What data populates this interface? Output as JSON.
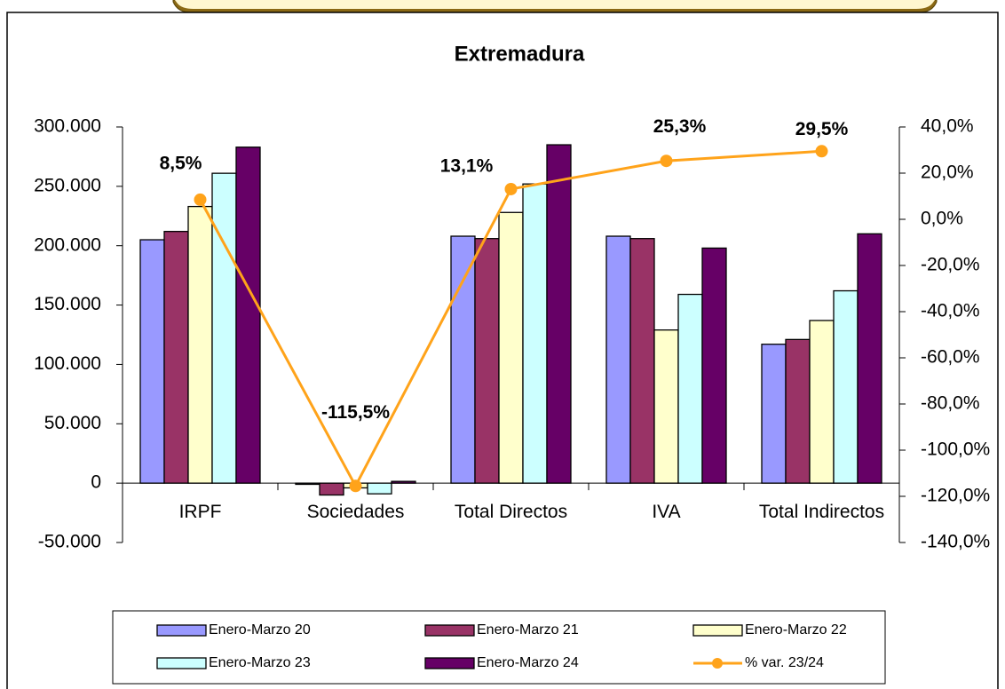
{
  "chart_data": {
    "type": "bar",
    "title": "Extremadura",
    "categories": [
      "IRPF",
      "Sociedades",
      "Total Directos",
      "IVA",
      "Total Indirectos"
    ],
    "series": [
      {
        "name": "Enero-Marzo 20",
        "color": "#9999ff",
        "values": [
          205000,
          -1000,
          208000,
          208000,
          117000
        ]
      },
      {
        "name": "Enero-Marzo 21",
        "color": "#993366",
        "values": [
          212000,
          -10000,
          206000,
          206000,
          121000
        ]
      },
      {
        "name": "Enero-Marzo 22",
        "color": "#ffffcc",
        "values": [
          233000,
          -4000,
          228000,
          129000,
          137000
        ]
      },
      {
        "name": "Enero-Marzo 23",
        "color": "#ccffff",
        "values": [
          261000,
          -9000,
          252000,
          159000,
          162000
        ]
      },
      {
        "name": "Enero-Marzo 24",
        "color": "#660066",
        "values": [
          283000,
          1500,
          285000,
          198000,
          210000
        ]
      },
      {
        "name": "% var. 23/24",
        "color": "#ffa31a",
        "type": "line",
        "axis": "y2",
        "values": [
          8.5,
          -115.5,
          13.1,
          25.3,
          29.5
        ],
        "value_labels": [
          "8,5%",
          "-115,5%",
          "13,1%",
          "25,3%",
          "29,5%"
        ]
      }
    ],
    "ylim": [
      -50000,
      300000
    ],
    "yticks": [
      {
        "value": -50000,
        "label": "-50.000"
      },
      0,
      {
        "value": 50000,
        "label": "50.000"
      },
      {
        "value": 100000,
        "label": "100.000"
      },
      {
        "value": 150000,
        "label": "150.000"
      },
      {
        "value": 200000,
        "label": "200.000"
      },
      {
        "value": 250000,
        "label": "250.000"
      },
      {
        "value": 300000,
        "label": "300.000"
      }
    ],
    "y2lim": [
      -140,
      40
    ],
    "y2ticks": [
      {
        "value": -140,
        "label": "-140,0%"
      },
      {
        "value": -120,
        "label": "-120,0%"
      },
      {
        "value": -100,
        "label": "-100,0%"
      },
      {
        "value": -80,
        "label": "-80,0%"
      },
      {
        "value": -60,
        "label": "-60,0%"
      },
      {
        "value": -40,
        "label": "-40,0%"
      },
      {
        "value": -20,
        "label": "-20,0%"
      },
      {
        "value": 0,
        "label": "0,0%"
      },
      {
        "value": 20,
        "label": "20,0%"
      },
      {
        "value": 40,
        "label": "40,0%"
      }
    ],
    "grid": false,
    "legend": "bottom"
  }
}
